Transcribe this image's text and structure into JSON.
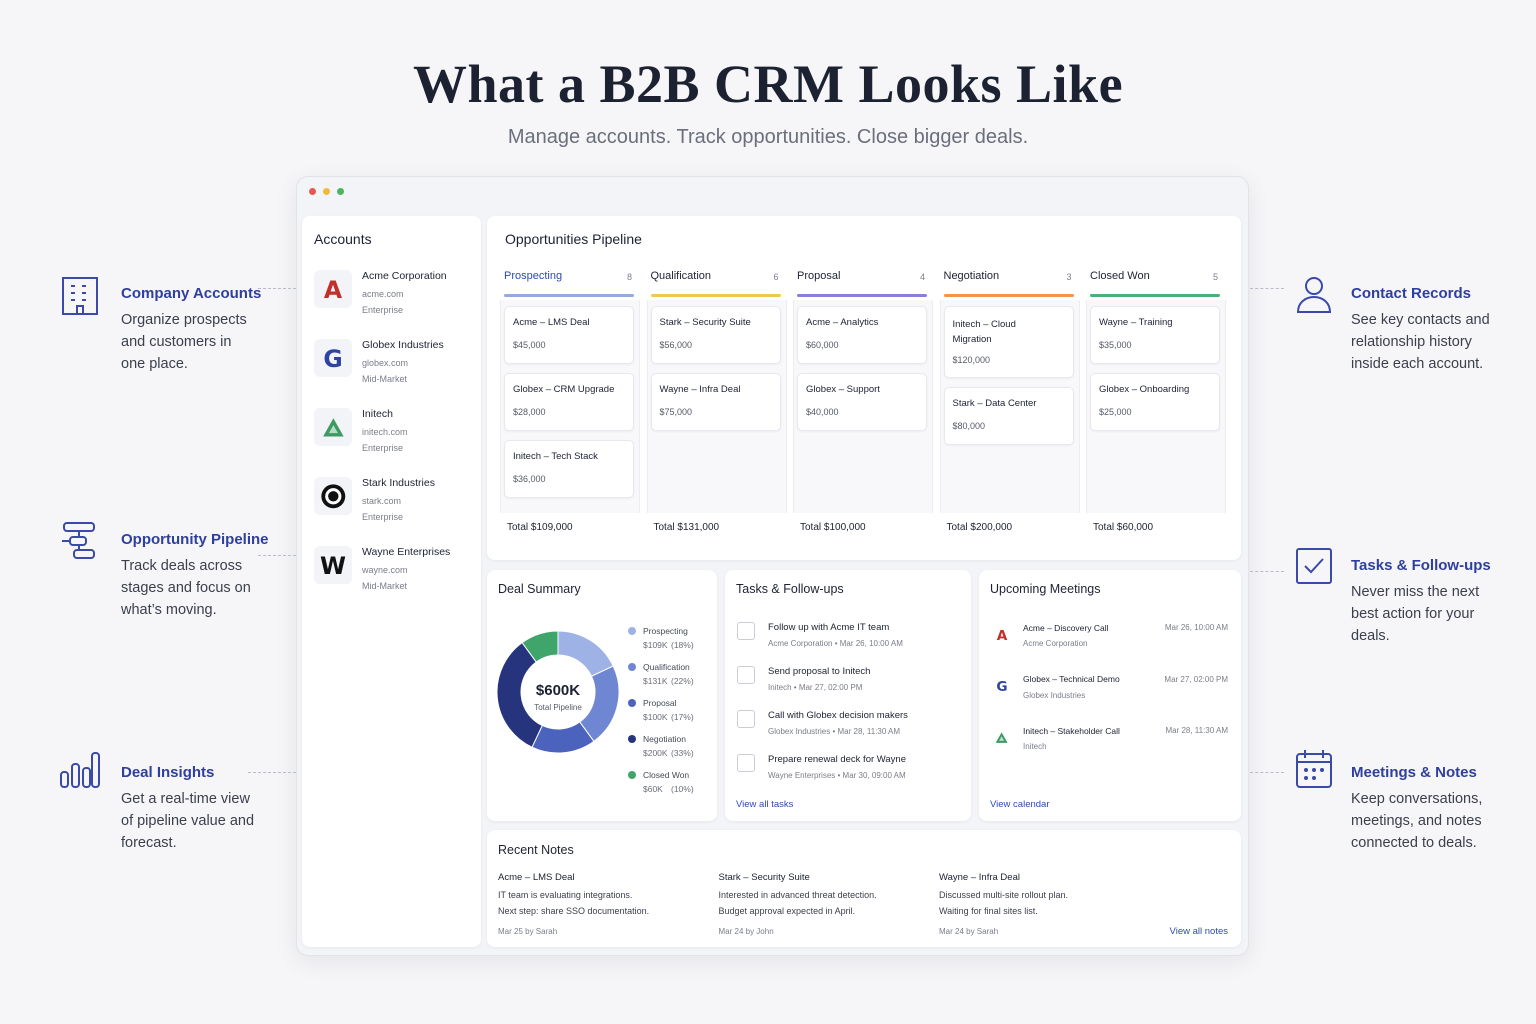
{
  "header": {
    "title": "What a B2B CRM Looks Like",
    "subtitle": "Manage accounts. Track opportunities. Close bigger deals."
  },
  "features_left": [
    {
      "title": "Company Accounts",
      "lines": [
        "Organize prospects",
        "and customers in",
        "one place."
      ]
    },
    {
      "title": "Opportunity Pipeline",
      "lines": [
        "Track deals across",
        "stages and focus on",
        "what’s moving."
      ]
    },
    {
      "title": "Deal Insights",
      "lines": [
        "Get a real-time view",
        "of pipeline value and",
        "forecast."
      ]
    }
  ],
  "features_right": [
    {
      "title": "Contact Records",
      "lines": [
        "See key contacts and",
        "relationship history",
        "inside each account."
      ]
    },
    {
      "title": "Tasks & Follow-ups",
      "lines": [
        "Never miss the next",
        "best action for your",
        "deals."
      ]
    },
    {
      "title": "Meetings & Notes",
      "lines": [
        "Keep conversations,",
        "meetings, and notes",
        "connected to deals."
      ]
    }
  ],
  "accounts": {
    "title": "Accounts",
    "items": [
      {
        "logo": "A",
        "name": "Acme Corporation",
        "domain": "acme.com",
        "segment": "Enterprise"
      },
      {
        "logo": "G",
        "name": "Globex Industries",
        "domain": "globex.com",
        "segment": "Mid-Market"
      },
      {
        "name": "Initech",
        "domain": "initech.com",
        "segment": "Enterprise"
      },
      {
        "name": "Stark Industries",
        "domain": "stark.com",
        "segment": "Enterprise"
      },
      {
        "logo": "W",
        "name": "Wayne Enterprises",
        "domain": "wayne.com",
        "segment": "Mid-Market"
      }
    ]
  },
  "pipeline": {
    "title": "Opportunities Pipeline",
    "stages": [
      {
        "name": "Prospecting",
        "count": 8,
        "color": "#93a9e2",
        "total": "Total $109,000",
        "deals": [
          {
            "name": "Acme – LMS Deal",
            "amount": "$45,000"
          },
          {
            "name": "Globex – CRM Upgrade",
            "amount": "$28,000"
          },
          {
            "name": "Initech – Tech Stack",
            "amount": "$36,000"
          }
        ]
      },
      {
        "name": "Qualification",
        "count": 6,
        "color": "#f1c94a",
        "total": "Total $131,000",
        "deals": [
          {
            "name": "Stark – Security Suite",
            "amount": "$56,000"
          },
          {
            "name": "Wayne – Infra Deal",
            "amount": "$75,000"
          }
        ]
      },
      {
        "name": "Proposal",
        "count": 4,
        "color": "#8a7fd6",
        "total": "Total $100,000",
        "deals": [
          {
            "name": "Acme – Analytics",
            "amount": "$60,000"
          },
          {
            "name": "Globex – Support",
            "amount": "$40,000"
          }
        ]
      },
      {
        "name": "Negotiation",
        "count": 3,
        "color": "#f0954a",
        "total": "Total $200,000",
        "deals": [
          {
            "name": "Initech – Cloud Migration",
            "amount": "$120,000"
          },
          {
            "name": "Stark – Data Center",
            "amount": "$80,000"
          }
        ]
      },
      {
        "name": "Closed Won",
        "count": 5,
        "color": "#4caf78",
        "total": "Total $60,000",
        "deals": [
          {
            "name": "Wayne – Training",
            "amount": "$35,000"
          },
          {
            "name": "Globex – Onboarding",
            "amount": "$25,000"
          }
        ]
      }
    ]
  },
  "deal_summary": {
    "title": "Deal Summary",
    "center_value": "$600K",
    "center_label": "Total Pipeline",
    "segments": [
      {
        "name": "Prospecting",
        "amount": "$109K",
        "percent": 18,
        "percent_label": "(18%)",
        "color": "#9fb2e6"
      },
      {
        "name": "Qualification",
        "amount": "$131K",
        "percent": 22,
        "percent_label": "(22%)",
        "color": "#6f87d2"
      },
      {
        "name": "Proposal",
        "amount": "$100K",
        "percent": 17,
        "percent_label": "(17%)",
        "color": "#4b63bd"
      },
      {
        "name": "Negotiation",
        "amount": "$200K",
        "percent": 33,
        "percent_label": "(33%)",
        "color": "#26337d"
      },
      {
        "name": "Closed Won",
        "amount": "$60K",
        "percent": 10,
        "percent_label": "(10%)",
        "color": "#3fa56b"
      }
    ]
  },
  "tasks": {
    "title": "Tasks & Follow-ups",
    "link": "View all tasks",
    "items": [
      {
        "title": "Follow up with Acme IT team",
        "meta": "Acme Corporation • Mar 26, 10:00 AM"
      },
      {
        "title": "Send proposal to Initech",
        "meta": "Initech • Mar 27, 02:00 PM"
      },
      {
        "title": "Call with Globex decision makers",
        "meta": "Globex Industries • Mar 28, 11:30 AM"
      },
      {
        "title": "Prepare renewal deck for Wayne",
        "meta": "Wayne Enterprises • Mar 30, 09:00 AM"
      }
    ]
  },
  "meetings": {
    "title": "Upcoming Meetings",
    "link": "View calendar",
    "items": [
      {
        "logo": "A",
        "title": "Acme – Discovery Call",
        "org": "Acme Corporation",
        "time": "Mar 26, 10:00 AM"
      },
      {
        "logo": "G",
        "title": "Globex – Technical Demo",
        "org": "Globex Industries",
        "time": "Mar 27, 02:00 PM"
      },
      {
        "title": "Initech – Stakeholder Call",
        "org": "Initech",
        "time": "Mar 28, 11:30 AM"
      }
    ]
  },
  "notes": {
    "title": "Recent Notes",
    "link": "View all notes",
    "items": [
      {
        "title": "Acme – LMS Deal",
        "lines": [
          "IT team is evaluating integrations.",
          "Next step: share SSO documentation."
        ],
        "meta": "Mar 25 by Sarah"
      },
      {
        "title": "Stark – Security Suite",
        "lines": [
          "Interested in advanced threat detection.",
          "Budget approval expected in April."
        ],
        "meta": "Mar 24 by John"
      },
      {
        "title": "Wayne – Infra Deal",
        "lines": [
          "Discussed multi-site rollout plan.",
          "Waiting for final sites list."
        ],
        "meta": "Mar 24 by Sarah"
      }
    ]
  }
}
